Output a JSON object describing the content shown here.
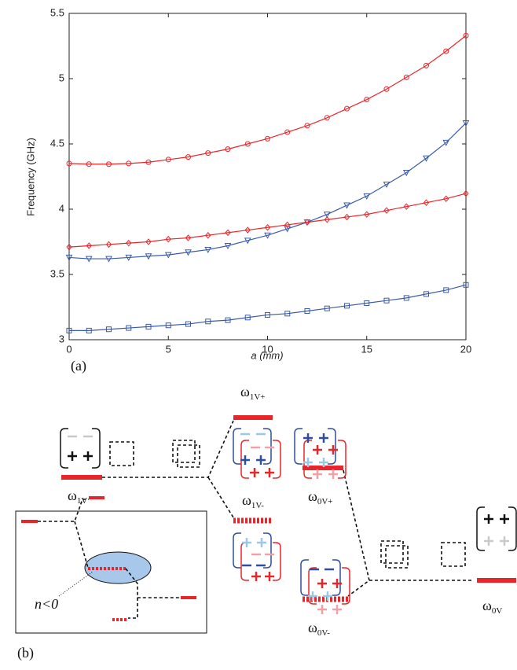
{
  "chart_data": {
    "type": "line",
    "x": [
      0,
      1,
      2,
      3,
      4,
      5,
      6,
      7,
      8,
      9,
      10,
      11,
      12,
      13,
      14,
      15,
      16,
      17,
      18,
      19,
      20
    ],
    "series": [
      {
        "color": "#e8262a",
        "marker": "circle",
        "values": [
          4.35,
          4.345,
          4.345,
          4.35,
          4.36,
          4.38,
          4.4,
          4.43,
          4.46,
          4.5,
          4.54,
          4.59,
          4.64,
          4.7,
          4.77,
          4.84,
          4.92,
          5.01,
          5.1,
          5.21,
          5.33
        ]
      },
      {
        "color": "#3a5ba8",
        "marker": "triangle-down",
        "values": [
          3.63,
          3.62,
          3.62,
          3.63,
          3.64,
          3.65,
          3.67,
          3.69,
          3.72,
          3.76,
          3.8,
          3.85,
          3.9,
          3.96,
          4.03,
          4.1,
          4.19,
          4.28,
          4.39,
          4.51,
          4.66
        ]
      },
      {
        "color": "#e8262a",
        "marker": "diamond",
        "values": [
          3.71,
          3.72,
          3.73,
          3.74,
          3.75,
          3.77,
          3.78,
          3.8,
          3.82,
          3.84,
          3.86,
          3.88,
          3.9,
          3.92,
          3.94,
          3.96,
          3.99,
          4.02,
          4.05,
          4.08,
          4.12
        ]
      },
      {
        "color": "#3a5ba8",
        "marker": "square",
        "values": [
          3.07,
          3.07,
          3.08,
          3.09,
          3.1,
          3.11,
          3.12,
          3.14,
          3.15,
          3.17,
          3.19,
          3.2,
          3.22,
          3.24,
          3.26,
          3.28,
          3.3,
          3.32,
          3.35,
          3.38,
          3.42
        ]
      }
    ],
    "xlabel": "a (mm)",
    "ylabel": "Frequency (GHz)",
    "xlim": [
      0,
      20
    ],
    "xticks": [
      0,
      5,
      10,
      15,
      20
    ],
    "ylim": [
      3,
      5.5
    ],
    "yticks": [
      3,
      3.5,
      4,
      4.5,
      5,
      5.5
    ],
    "grid": false
  },
  "panel_a_label": "(a)",
  "panel_b_label": "(b)",
  "diagram": {
    "levels": [
      {
        "symbol": "ω",
        "sub": "1V"
      },
      {
        "symbol": "ω",
        "sub": "1V+"
      },
      {
        "symbol": "ω",
        "sub": "1V-"
      },
      {
        "symbol": "ω",
        "sub": "0V+"
      },
      {
        "symbol": "ω",
        "sub": "0V-"
      },
      {
        "symbol": "ω",
        "sub": "0V"
      }
    ],
    "inset_label": "n<0"
  }
}
